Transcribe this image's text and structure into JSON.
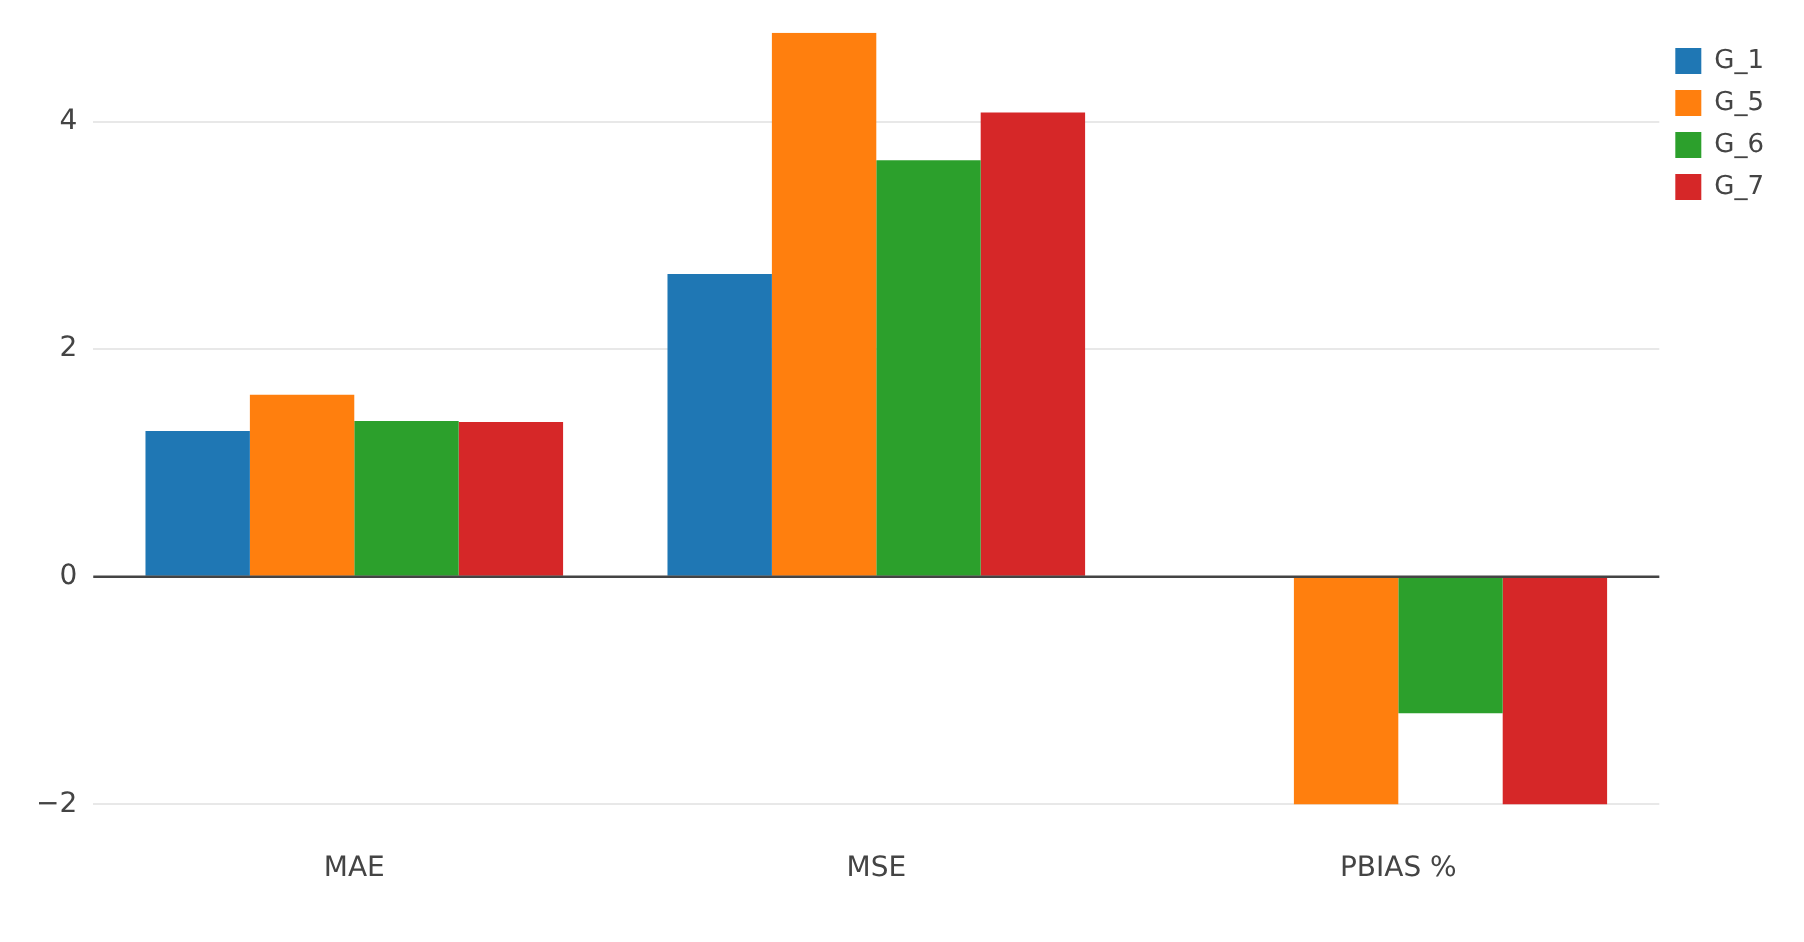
{
  "chart_data": {
    "type": "bar",
    "categories": [
      "MAE",
      "MSE",
      "PBIAS %"
    ],
    "series": [
      {
        "name": "G_1",
        "color": "#1f77b4",
        "values": [
          1.28,
          2.66,
          null
        ]
      },
      {
        "name": "G_5",
        "color": "#ff7f0e",
        "values": [
          1.6,
          4.78,
          -2.0
        ]
      },
      {
        "name": "G_6",
        "color": "#2ca02c",
        "values": [
          1.37,
          3.66,
          -1.2
        ]
      },
      {
        "name": "G_7",
        "color": "#d62728",
        "values": [
          1.36,
          4.08,
          -2.0
        ]
      }
    ],
    "ylim": [
      -2,
      4.78
    ],
    "yticks": [
      -2,
      0,
      2,
      4
    ],
    "grid": "y",
    "legend": "top right"
  }
}
